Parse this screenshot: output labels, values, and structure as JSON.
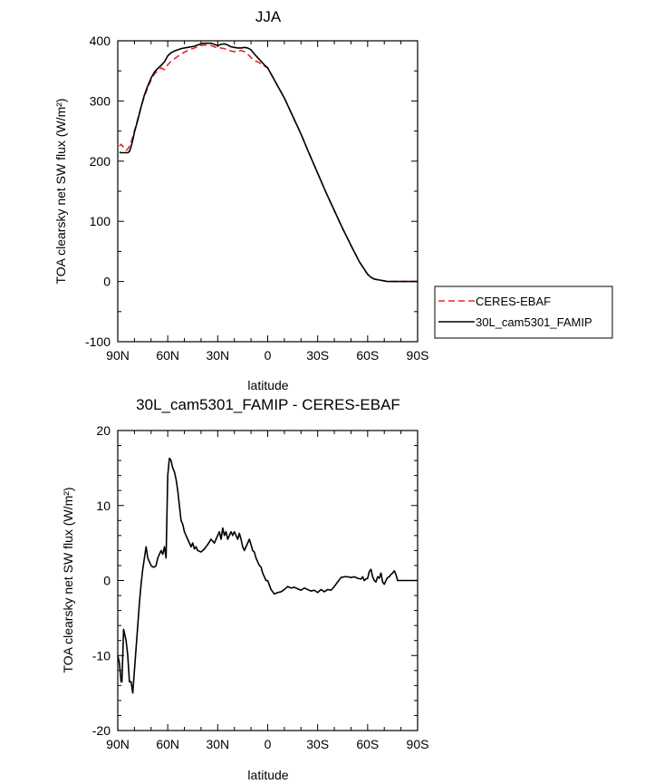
{
  "chart_data": [
    {
      "type": "line",
      "title": "JJA",
      "xlabel": "latitude",
      "ylabel": "TOA clearsky net SW flux (W/m²)",
      "xlim": [
        90,
        -90
      ],
      "ylim": [
        -100,
        400
      ],
      "xticks": [
        90,
        60,
        30,
        0,
        -30,
        -60,
        -90
      ],
      "xticklabels": [
        "90N",
        "60N",
        "30N",
        "0",
        "30S",
        "60S",
        "90S"
      ],
      "yticks": [
        -100,
        0,
        100,
        200,
        300,
        400
      ],
      "yticklabels": [
        "-100",
        "0",
        "100",
        "200",
        "300",
        "400"
      ],
      "legend_position": "right-center",
      "series": [
        {
          "name": "CERES-EBAF",
          "color": "#e8262b",
          "dash": "dashed",
          "x": [
            89,
            88,
            87,
            86,
            85,
            84,
            83,
            82,
            81,
            80,
            78,
            76,
            74,
            72,
            70,
            68,
            66,
            64,
            62,
            60,
            58,
            56,
            54,
            52,
            50,
            48,
            46,
            44,
            42,
            40,
            38,
            36,
            34,
            32,
            30,
            28,
            26,
            24,
            22,
            20,
            18,
            16,
            14,
            12,
            10,
            8,
            6,
            4,
            2,
            0,
            -5,
            -10,
            -15,
            -20,
            -25,
            -30,
            -35,
            -40,
            -45,
            -50,
            -55,
            -60,
            -62,
            -64,
            -66,
            -68,
            -70,
            -72,
            -75,
            -80,
            -85,
            -90
          ],
          "y": [
            225,
            228,
            225,
            220,
            218,
            220,
            225,
            232,
            240,
            250,
            270,
            290,
            308,
            322,
            335,
            345,
            350,
            355,
            352,
            360,
            366,
            370,
            374,
            378,
            381,
            384,
            386,
            388,
            390,
            392,
            393,
            393,
            392,
            390,
            388,
            388,
            387,
            385,
            383,
            382,
            382,
            384,
            382,
            378,
            372,
            367,
            365,
            362,
            358,
            355,
            330,
            305,
            275,
            245,
            212,
            180,
            148,
            118,
            88,
            60,
            33,
            12,
            7,
            4,
            3,
            2,
            1,
            0,
            0,
            0,
            0,
            0
          ]
        },
        {
          "name": "30L_cam5301_FAMIP",
          "color": "#000000",
          "dash": "solid",
          "x": [
            89,
            88,
            87,
            86,
            85,
            84,
            83,
            82,
            81,
            80,
            78,
            76,
            74,
            72,
            70,
            68,
            66,
            64,
            62,
            60,
            58,
            56,
            54,
            52,
            50,
            48,
            46,
            44,
            42,
            40,
            38,
            36,
            34,
            32,
            30,
            28,
            26,
            24,
            22,
            20,
            18,
            16,
            14,
            12,
            10,
            8,
            6,
            4,
            2,
            0,
            -5,
            -10,
            -15,
            -20,
            -25,
            -30,
            -35,
            -40,
            -45,
            -50,
            -55,
            -60,
            -62,
            -64,
            -66,
            -68,
            -70,
            -72,
            -75,
            -80,
            -85,
            -90
          ],
          "y": [
            215,
            214,
            214,
            214,
            214,
            214,
            216,
            224,
            235,
            248,
            268,
            290,
            310,
            325,
            338,
            348,
            354,
            359,
            365,
            375,
            380,
            383,
            385,
            387,
            388,
            389,
            390,
            391,
            393,
            395,
            396,
            396,
            396,
            394,
            392,
            394,
            395,
            393,
            390,
            389,
            388,
            388,
            389,
            388,
            385,
            378,
            372,
            366,
            360,
            355,
            330,
            305,
            275,
            245,
            212,
            180,
            148,
            118,
            88,
            60,
            33,
            12,
            7,
            4,
            3,
            2,
            1,
            0,
            0,
            0,
            0,
            0
          ]
        }
      ]
    },
    {
      "type": "line",
      "title": "30L_cam5301_FAMIP - CERES-EBAF",
      "xlabel": "latitude",
      "ylabel": "TOA clearsky net SW flux (W/m²)",
      "xlim": [
        90,
        -90
      ],
      "ylim": [
        -20,
        20
      ],
      "xticks": [
        90,
        60,
        30,
        0,
        -30,
        -60,
        -90
      ],
      "xticklabels": [
        "90N",
        "60N",
        "30N",
        "0",
        "30S",
        "60S",
        "90S"
      ],
      "yticks": [
        -20,
        -10,
        0,
        10,
        20
      ],
      "yticklabels": [
        "-20",
        "-10",
        "0",
        "10",
        "20"
      ],
      "series": [
        {
          "color": "#000000",
          "dash": "solid",
          "x": [
            90,
            89,
            88,
            87.5,
            87,
            86.5,
            86,
            85,
            84,
            83,
            82,
            81,
            80,
            79,
            78,
            77,
            76,
            75,
            74,
            73,
            72,
            71,
            70,
            69,
            68,
            67,
            66,
            65,
            64,
            63,
            62,
            61,
            60,
            59,
            58,
            57,
            56,
            55,
            54,
            53,
            52,
            51,
            50,
            49,
            48,
            47,
            46,
            45,
            44,
            43,
            42,
            40,
            38,
            36,
            34,
            32,
            30,
            29,
            28,
            27,
            26,
            25,
            24,
            23,
            22,
            21,
            20,
            19,
            18,
            17,
            16,
            15,
            14,
            13,
            12,
            11,
            10,
            9,
            8,
            7,
            6,
            5,
            4,
            3,
            2,
            1,
            0,
            -2,
            -4,
            -6,
            -8,
            -10,
            -12,
            -14,
            -16,
            -18,
            -20,
            -22,
            -24,
            -26,
            -28,
            -30,
            -32,
            -34,
            -36,
            -38,
            -40,
            -42,
            -44,
            -46,
            -48,
            -50,
            -52,
            -54,
            -56,
            -57,
            -58,
            -59,
            -60,
            -61,
            -62,
            -63,
            -64,
            -65,
            -66,
            -67,
            -68,
            -69,
            -70,
            -71,
            -72,
            -73,
            -74,
            -75,
            -76,
            -77,
            -78,
            -80,
            -85,
            -90
          ],
          "y": [
            -10,
            -11,
            -13.5,
            -13.5,
            -10,
            -6.5,
            -7,
            -8,
            -10,
            -13.5,
            -13.5,
            -15,
            -12,
            -9,
            -6,
            -3,
            -0.5,
            1.5,
            3,
            4.5,
            3,
            2.5,
            2,
            1.8,
            1.8,
            2,
            3,
            3.5,
            4,
            3.5,
            4.5,
            3,
            14,
            16.3,
            16,
            15,
            14.5,
            13.5,
            12,
            10,
            8,
            7.5,
            6.5,
            6,
            5.5,
            5,
            4.5,
            5,
            4.2,
            4.5,
            4,
            3.8,
            4.2,
            4.8,
            5.5,
            5,
            6,
            6.5,
            5.5,
            7,
            6,
            6.5,
            5.5,
            6,
            6.5,
            6,
            6.5,
            6,
            5.5,
            6.3,
            5.5,
            4.5,
            4,
            4.5,
            5,
            5.5,
            4.8,
            4,
            3.8,
            3,
            2.5,
            2,
            1.8,
            1,
            0.5,
            0,
            0,
            -1.2,
            -1.8,
            -1.6,
            -1.5,
            -1.2,
            -0.8,
            -1.0,
            -0.9,
            -1.1,
            -1.3,
            -1.0,
            -1.2,
            -1.4,
            -1.3,
            -1.6,
            -1.2,
            -1.5,
            -1.2,
            -1.3,
            -0.8,
            -0.2,
            0.4,
            0.5,
            0.5,
            0.4,
            0.5,
            0.3,
            0.2,
            0.5,
            0,
            0.2,
            0.3,
            1.2,
            1.5,
            0.5,
            0,
            -0.2,
            0.5,
            0.3,
            1,
            -0.2,
            -0.5,
            0,
            0.4,
            0.5,
            0.8,
            1,
            1.3,
            0.8,
            0,
            0,
            0,
            0
          ]
        }
      ]
    }
  ]
}
